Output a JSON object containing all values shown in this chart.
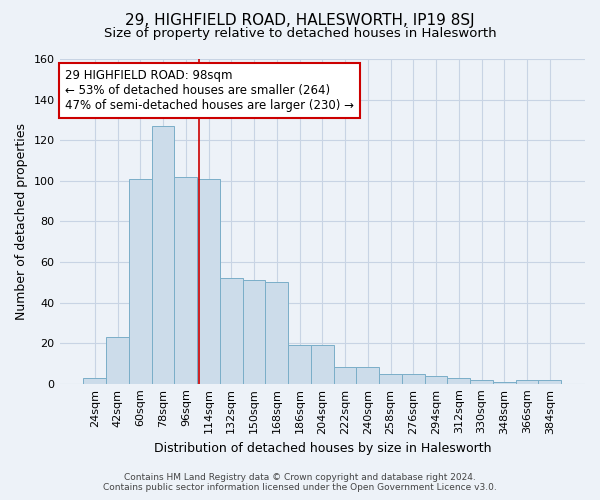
{
  "title": "29, HIGHFIELD ROAD, HALESWORTH, IP19 8SJ",
  "subtitle": "Size of property relative to detached houses in Halesworth",
  "xlabel": "Distribution of detached houses by size in Halesworth",
  "ylabel": "Number of detached properties",
  "footnote1": "Contains HM Land Registry data © Crown copyright and database right 2024.",
  "footnote2": "Contains public sector information licensed under the Open Government Licence v3.0.",
  "bar_labels": [
    "24sqm",
    "42sqm",
    "60sqm",
    "78sqm",
    "96sqm",
    "114sqm",
    "132sqm",
    "150sqm",
    "168sqm",
    "186sqm",
    "204sqm",
    "222sqm",
    "240sqm",
    "258sqm",
    "276sqm",
    "294sqm",
    "312sqm",
    "330sqm",
    "348sqm",
    "366sqm",
    "384sqm"
  ],
  "bar_values": [
    3,
    23,
    101,
    127,
    102,
    101,
    52,
    51,
    50,
    19,
    19,
    8,
    8,
    5,
    5,
    4,
    3,
    2,
    1,
    2,
    2
  ],
  "bar_color": "#ccdcea",
  "bar_edge_color": "#7aaec8",
  "grid_color": "#c8d4e4",
  "bg_color": "#edf2f8",
  "red_line_x": 4.57,
  "red_line_color": "#cc0000",
  "annotation_text": "29 HIGHFIELD ROAD: 98sqm\n← 53% of detached houses are smaller (264)\n47% of semi-detached houses are larger (230) →",
  "annotation_box_color": "#ffffff",
  "annotation_box_edge": "#cc0000",
  "ylim": [
    0,
    160
  ],
  "yticks": [
    0,
    20,
    40,
    60,
    80,
    100,
    120,
    140,
    160
  ],
  "title_fontsize": 11,
  "subtitle_fontsize": 9.5,
  "axis_label_fontsize": 9,
  "tick_fontsize": 8,
  "annotation_fontsize": 8.5,
  "footnote_fontsize": 6.5
}
